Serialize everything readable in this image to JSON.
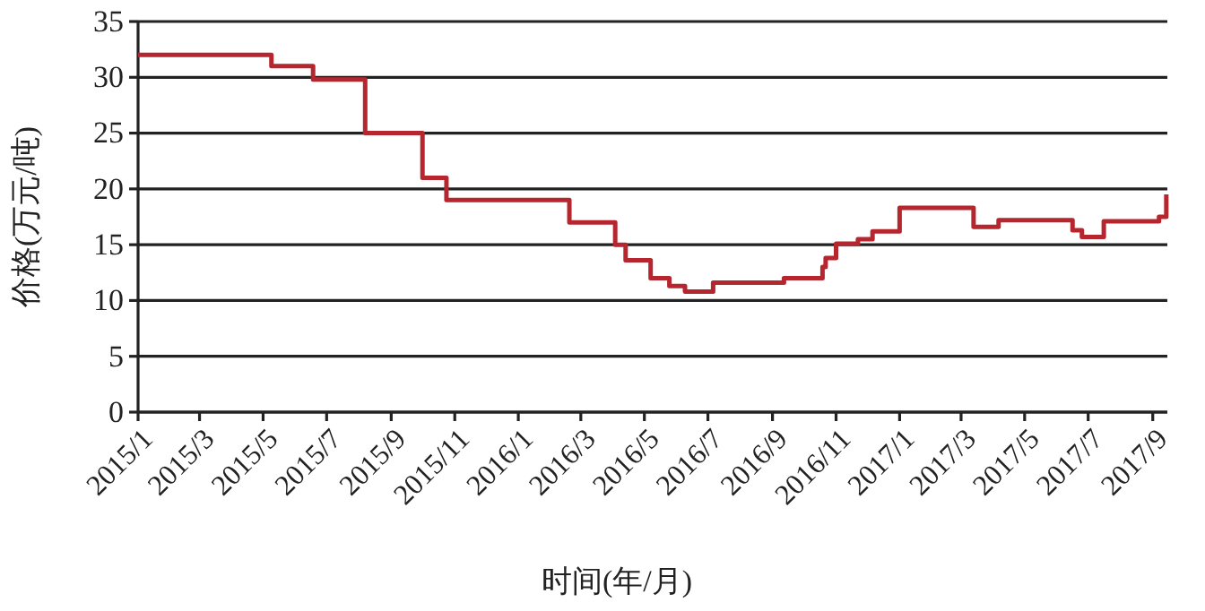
{
  "chart_data": {
    "type": "step",
    "xlabel": "时间(年/月)",
    "ylabel": "价格(万元/吨)",
    "x": [
      "2015-01-01",
      "2015-05-09",
      "2015-06-18",
      "2015-08-07",
      "2015-10-01",
      "2015-10-24",
      "2016-02-19",
      "2016-04-03",
      "2016-04-13",
      "2016-05-07",
      "2016-05-25",
      "2016-06-09",
      "2016-07-06",
      "2016-09-12",
      "2016-10-19",
      "2016-10-22",
      "2016-11-01",
      "2016-11-22",
      "2016-12-06",
      "2017-01-01",
      "2017-03-13",
      "2017-04-06",
      "2017-06-16",
      "2017-06-25",
      "2017-07-16",
      "2017-09-07",
      "2017-09-14"
    ],
    "series": [
      {
        "color": "#b5262e",
        "values": [
          32,
          31,
          29.8,
          25,
          21,
          19,
          17,
          15,
          13.6,
          12,
          11.3,
          10.8,
          11.6,
          12,
          13,
          13.8,
          15.1,
          15.5,
          16.2,
          18.3,
          16.6,
          17.2,
          16.3,
          15.7,
          17.1,
          17.5,
          19.5
        ]
      }
    ],
    "xlim": [
      "2015-01-01",
      "2017-09-15"
    ],
    "xticks": [
      {
        "value": "2015-01-01",
        "label": "2015/1"
      },
      {
        "value": "2015-03-01",
        "label": "2015/3"
      },
      {
        "value": "2015-05-01",
        "label": "2015/5"
      },
      {
        "value": "2015-07-01",
        "label": "2015/7"
      },
      {
        "value": "2015-09-01",
        "label": "2015/9"
      },
      {
        "value": "2015-11-01",
        "label": "2015/11"
      },
      {
        "value": "2016-01-01",
        "label": "2016/1"
      },
      {
        "value": "2016-03-01",
        "label": "2016/3"
      },
      {
        "value": "2016-05-01",
        "label": "2016/5"
      },
      {
        "value": "2016-07-01",
        "label": "2016/7"
      },
      {
        "value": "2016-09-01",
        "label": "2016/9"
      },
      {
        "value": "2016-11-01",
        "label": "2016/11"
      },
      {
        "value": "2017-01-01",
        "label": "2017/1"
      },
      {
        "value": "2017-03-01",
        "label": "2017/3"
      },
      {
        "value": "2017-05-01",
        "label": "2017/5"
      },
      {
        "value": "2017-07-01",
        "label": "2017/7"
      },
      {
        "value": "2017-09-01",
        "label": "2017/9"
      }
    ],
    "ylim": [
      0,
      35
    ],
    "yticks": [
      0,
      5,
      10,
      15,
      20,
      25,
      30,
      35
    ],
    "grid": "y"
  }
}
